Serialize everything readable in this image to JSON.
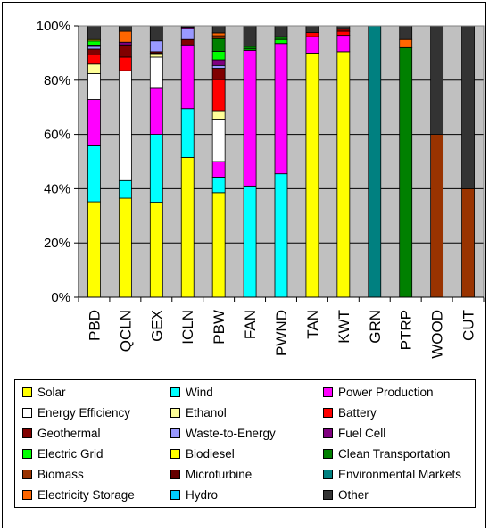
{
  "chart_data": {
    "type": "bar",
    "stacked": "percent",
    "plot_background": "#c0c0c0",
    "grid": true,
    "legend_position": "bottom",
    "categories": [
      "PBD",
      "QCLN",
      "GEX",
      "ICLN",
      "PBW",
      "FAN",
      "PWND",
      "TAN",
      "KWT",
      "GRN",
      "PTRP",
      "WOOD",
      "CUT"
    ],
    "y_ticks": [
      "0%",
      "20%",
      "40%",
      "60%",
      "80%",
      "100%"
    ],
    "ylim": [
      0,
      100
    ],
    "series": [
      {
        "name": "Solar",
        "color": "#ffff00",
        "values": [
          35,
          36.5,
          35,
          51.5,
          37,
          0,
          0,
          90,
          90.5,
          0,
          0,
          0,
          0
        ]
      },
      {
        "name": "Wind",
        "color": "#00ffff",
        "values": [
          20.5,
          6.5,
          25,
          18,
          5.5,
          41,
          45.5,
          0,
          0,
          0,
          0,
          0,
          0
        ]
      },
      {
        "name": "Power Production",
        "color": "#ff00ff",
        "values": [
          17,
          0,
          17,
          23.5,
          5.5,
          50,
          48,
          6,
          6,
          0,
          0,
          0,
          0
        ]
      },
      {
        "name": "Energy Efficiency",
        "color": "#ffffff",
        "values": [
          9.5,
          40.5,
          11.5,
          0,
          15,
          0,
          0,
          0,
          0,
          0,
          0,
          0,
          0
        ]
      },
      {
        "name": "Ethanol",
        "color": "#ffff99",
        "values": [
          3.5,
          0,
          1,
          0,
          3,
          0,
          0,
          0,
          0,
          0,
          0,
          0,
          0
        ]
      },
      {
        "name": "Battery",
        "color": "#ff0000",
        "values": [
          3.5,
          5,
          0.5,
          0,
          11,
          0,
          0,
          1.5,
          1.5,
          0,
          0,
          0,
          0
        ]
      },
      {
        "name": "Geothermal",
        "color": "#800000",
        "values": [
          2,
          4.5,
          0.5,
          2,
          4,
          0,
          0,
          0,
          1,
          0,
          0,
          0,
          0
        ]
      },
      {
        "name": "Waste-to-Energy",
        "color": "#9999ff",
        "values": [
          1,
          0,
          4,
          4,
          1,
          0,
          0,
          0,
          0,
          0,
          0,
          0,
          0
        ]
      },
      {
        "name": "Fuel Cell",
        "color": "#800080",
        "values": [
          0.5,
          1,
          0,
          0.5,
          2,
          0,
          0,
          0,
          0,
          0,
          0,
          0,
          0
        ]
      },
      {
        "name": "Electric Grid",
        "color": "#00ff00",
        "values": [
          1.5,
          0,
          0,
          0,
          3,
          0.5,
          1.5,
          0,
          0,
          0,
          0,
          0,
          0
        ]
      },
      {
        "name": "Biodiesel",
        "color": "#ffff00",
        "values": [
          0.5,
          0,
          0,
          0,
          0,
          0,
          0,
          0,
          0,
          0,
          0,
          0,
          0
        ]
      },
      {
        "name": "Clean Transportation",
        "color": "#008000",
        "values": [
          0,
          0,
          0,
          0,
          4.5,
          1,
          1,
          0,
          0,
          0,
          92,
          0,
          0
        ]
      },
      {
        "name": "Biomass",
        "color": "#993300",
        "values": [
          0,
          0,
          0,
          0,
          1,
          0,
          0,
          0,
          0,
          0,
          0,
          60,
          40
        ]
      },
      {
        "name": "Microturbine",
        "color": "#660000",
        "values": [
          0,
          0,
          0,
          0,
          0,
          0,
          0,
          0,
          0,
          0,
          0,
          0,
          0
        ]
      },
      {
        "name": "Environmental Markets",
        "color": "#008080",
        "values": [
          0,
          0,
          0,
          0,
          0,
          0,
          0,
          0,
          0,
          100,
          0,
          0,
          0
        ]
      },
      {
        "name": "Electricity Storage",
        "color": "#ff6600",
        "values": [
          0,
          4,
          0,
          0,
          1,
          0,
          0,
          0,
          0,
          0,
          3,
          0,
          0
        ]
      },
      {
        "name": "Hydro",
        "color": "#00ccff",
        "values": [
          0,
          0,
          0,
          0,
          0,
          0,
          0,
          0,
          0,
          0,
          0,
          0,
          0
        ]
      },
      {
        "name": "Other",
        "color": "#333333",
        "values": [
          5,
          2,
          5.5,
          0.5,
          2.5,
          7.5,
          4,
          2.5,
          1,
          0,
          5,
          40,
          60
        ]
      }
    ]
  }
}
